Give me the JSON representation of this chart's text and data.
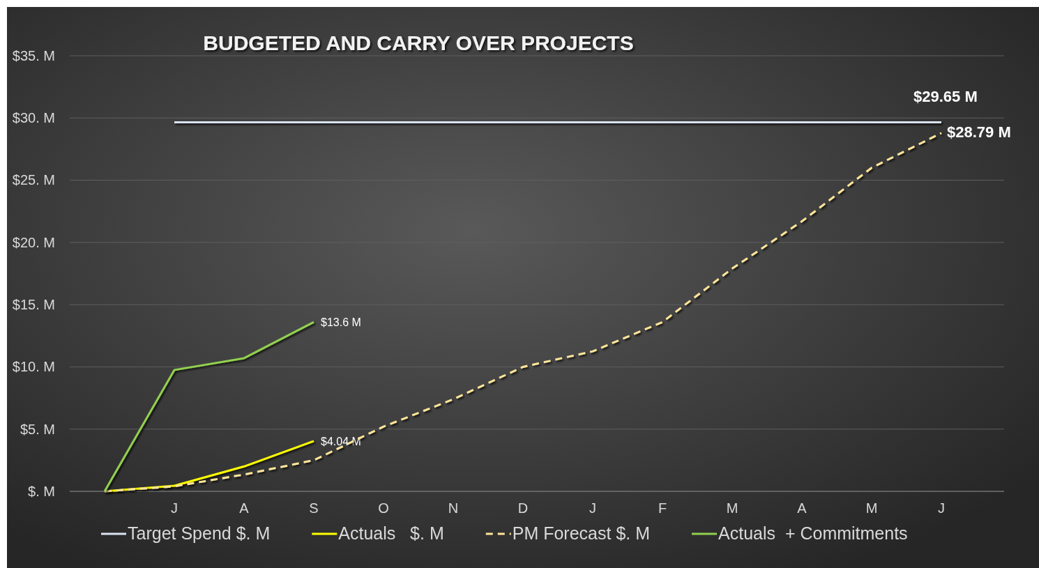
{
  "chart_data": {
    "type": "line",
    "title": "BUDGETED AND CARRY OVER PROJECTS",
    "categories": [
      null,
      "J",
      "A",
      "S",
      "O",
      "N",
      "D",
      "J",
      "F",
      "M",
      "A",
      "M",
      "J"
    ],
    "series": [
      {
        "name": "Target Spend $. M",
        "color": "#dae3f3",
        "values": [
          null,
          29.65,
          29.65,
          29.65,
          29.65,
          29.65,
          29.65,
          29.65,
          29.65,
          29.65,
          29.65,
          29.65,
          29.65
        ],
        "value_labels": [
          null,
          null,
          null,
          null,
          null,
          null,
          null,
          null,
          null,
          null,
          null,
          null,
          "$29.65 M"
        ]
      },
      {
        "name": "Actuals   $. M",
        "color": "#ffff00",
        "values": [
          0,
          0.45,
          2.0,
          4.04,
          null,
          null,
          null,
          null,
          null,
          null,
          null,
          null,
          null
        ],
        "value_labels": [
          null,
          null,
          null,
          "$4.04 M",
          null,
          null,
          null,
          null,
          null,
          null,
          null,
          null,
          null
        ]
      },
      {
        "name": "PM Forecast $. M",
        "color": "#ffe699",
        "line_style": "dashed",
        "values": [
          0,
          0.4,
          1.35,
          2.5,
          5.2,
          7.4,
          10.0,
          11.25,
          13.6,
          17.9,
          21.7,
          26.0,
          28.79
        ],
        "value_labels": [
          null,
          null,
          null,
          null,
          null,
          null,
          null,
          null,
          null,
          null,
          null,
          null,
          "$28.79 M"
        ]
      },
      {
        "name": "Actuals  + Commitments",
        "color": "#92d050",
        "values": [
          0,
          9.75,
          10.7,
          13.6,
          null,
          null,
          null,
          null,
          null,
          null,
          null,
          null,
          null
        ],
        "value_labels": [
          null,
          null,
          null,
          "$13.6 M",
          null,
          null,
          null,
          null,
          null,
          null,
          null,
          null,
          null
        ]
      }
    ],
    "ylim": [
      0,
      35
    ],
    "yticks": [
      {
        "value": 0,
        "label": "$. M"
      },
      {
        "value": 5,
        "label": "$5. M"
      },
      {
        "value": 10,
        "label": "$10. M"
      },
      {
        "value": 15,
        "label": "$15. M"
      },
      {
        "value": 20,
        "label": "$20. M"
      },
      {
        "value": 25,
        "label": "$25. M"
      },
      {
        "value": 30,
        "label": "$30. M"
      },
      {
        "value": 35,
        "label": "$35. M"
      }
    ],
    "grid": "y",
    "legend": "bottom",
    "marker": "none"
  }
}
